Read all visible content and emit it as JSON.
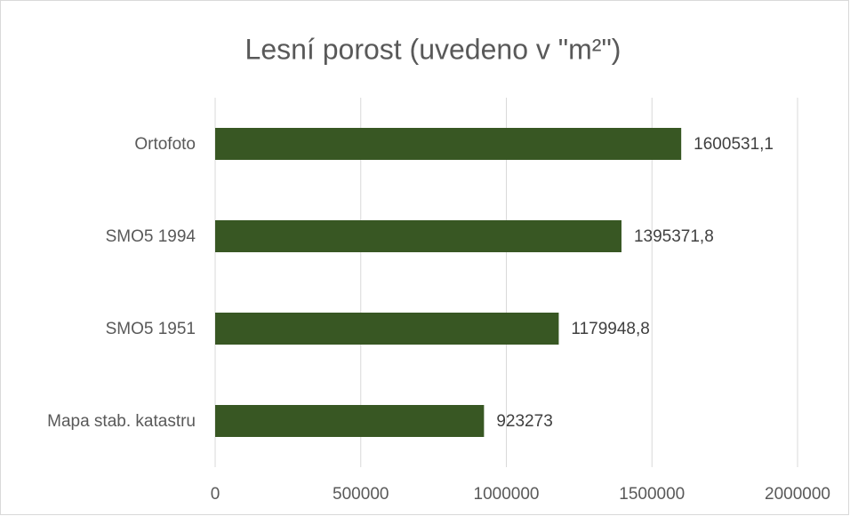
{
  "chart_data": {
    "type": "bar",
    "orientation": "horizontal",
    "title": "Lesní porost (uvedeno v \"m²\")",
    "categories": [
      "Ortofoto",
      "SMO5 1994",
      "SMO5 1951",
      "Mapa stab. katastru"
    ],
    "values": [
      1600531.1,
      1395371.8,
      1179948.8,
      923273
    ],
    "value_labels": [
      "1600531,1",
      "1395371,8",
      "1179948,8",
      "923273"
    ],
    "color": "#385723",
    "xlim": [
      0,
      2000000
    ],
    "xticks": [
      0,
      500000,
      1000000,
      1500000,
      2000000
    ],
    "grid": true
  }
}
